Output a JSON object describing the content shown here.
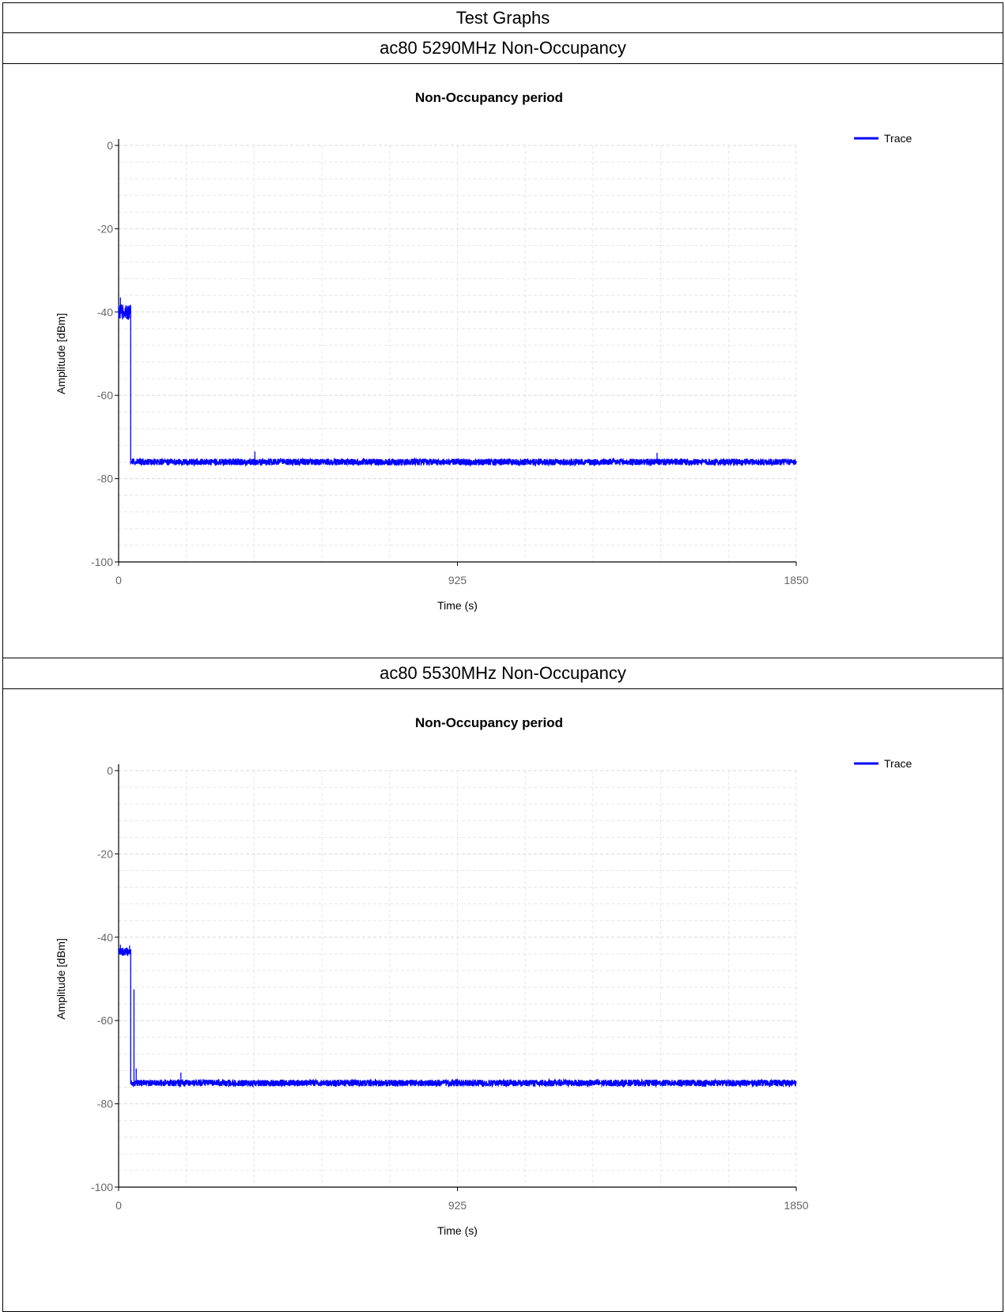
{
  "report": {
    "title": "Test Graphs"
  },
  "sections": [
    {
      "heading": "ac80 5290MHz Non-Occupancy"
    },
    {
      "heading": "ac80 5530MHz Non-Occupancy"
    }
  ],
  "chart_data": [
    {
      "type": "line",
      "title": "Non-Occupancy period",
      "xlabel": "Time (s)",
      "ylabel": "Amplitude [dBm]",
      "xlim": [
        0,
        1850
      ],
      "ylim": [
        -100,
        0
      ],
      "xticks": [
        "0",
        "925",
        "1850"
      ],
      "yticks": [
        "0",
        "-20",
        "-40",
        "-60",
        "-80",
        "-100"
      ],
      "grid": true,
      "legend_position": "top-right",
      "series_color": "#0000ff",
      "series": [
        {
          "name": "Trace",
          "segments": [
            {
              "x_start": 0,
              "x_end": 33,
              "level": -40,
              "spread": 3.8
            },
            {
              "x_start": 33,
              "x_end": 1850,
              "level": -76,
              "spread": 1.6
            }
          ],
          "spikes": [
            {
              "x": 5,
              "y": -36.5
            },
            {
              "x": 372,
              "y": -73.5
            },
            {
              "x": 1470,
              "y": -73.8
            }
          ]
        }
      ]
    },
    {
      "type": "line",
      "title": "Non-Occupancy period",
      "xlabel": "Time (s)",
      "ylabel": "Amplitude [dBm]",
      "xlim": [
        0,
        1850
      ],
      "ylim": [
        -100,
        0
      ],
      "xticks": [
        "0",
        "925",
        "1850"
      ],
      "yticks": [
        "0",
        "-20",
        "-40",
        "-60",
        "-80",
        "-100"
      ],
      "grid": true,
      "legend_position": "top-right",
      "series_color": "#0000ff",
      "series": [
        {
          "name": "Trace",
          "segments": [
            {
              "x_start": 0,
              "x_end": 33,
              "level": -43.5,
              "spread": 2.0
            },
            {
              "x_start": 33,
              "x_end": 1850,
              "level": -75,
              "spread": 1.6
            }
          ],
          "spikes": [
            {
              "x": 5,
              "y": -41.8
            },
            {
              "x": 30,
              "y": -42
            },
            {
              "x": 42,
              "y": -52.5
            },
            {
              "x": 48,
              "y": -71.5
            },
            {
              "x": 170,
              "y": -72.5
            }
          ]
        }
      ]
    }
  ]
}
